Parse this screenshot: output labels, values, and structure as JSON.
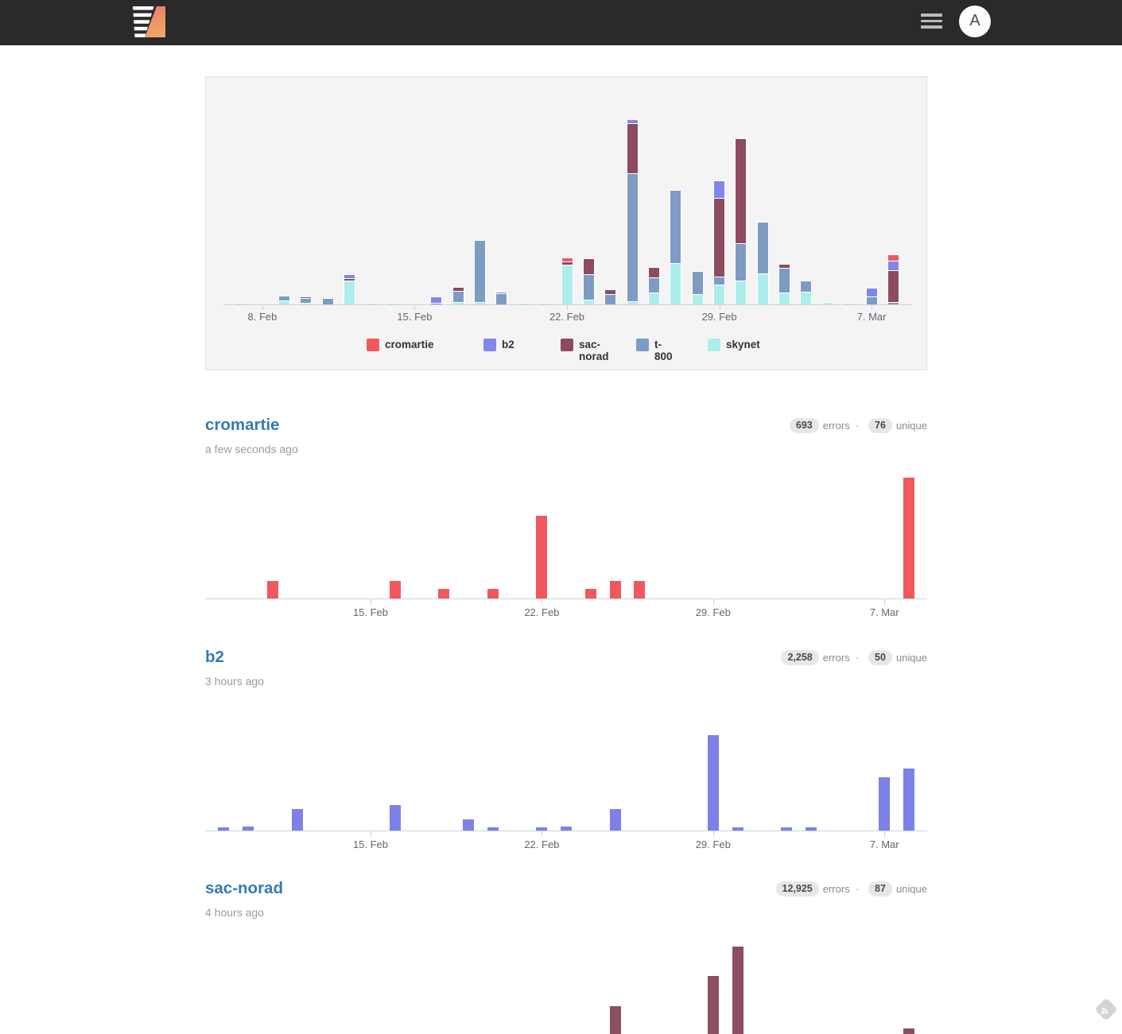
{
  "header": {
    "avatar_letter": "A"
  },
  "overview_chart": {
    "type": "bar-stacked",
    "categories": [
      "7. Feb",
      "8. Feb",
      "9. Feb",
      "10. Feb",
      "11. Feb",
      "12. Feb",
      "13. Feb",
      "14. Feb",
      "15. Feb",
      "16. Feb",
      "17. Feb",
      "18. Feb",
      "19. Feb",
      "20. Feb",
      "21. Feb",
      "22. Feb",
      "23. Feb",
      "24. Feb",
      "25. Feb",
      "26. Feb",
      "27. Feb",
      "28. Feb",
      "29. Feb",
      "1. Mar",
      "2. Mar",
      "3. Mar",
      "4. Mar",
      "5. Mar",
      "6. Mar",
      "7. Mar",
      "8. Mar"
    ],
    "series": [
      {
        "name": "skynet",
        "color": "#aeeeea",
        "values": [
          1,
          0,
          4,
          1,
          0,
          29,
          1,
          1,
          0,
          0,
          2,
          2,
          0,
          1,
          1,
          49,
          5,
          0,
          3,
          14,
          51,
          12,
          24,
          29,
          38,
          14,
          15,
          2,
          1,
          0,
          0
        ]
      },
      {
        "name": "t-800",
        "color": "#7d9bc3",
        "values": [
          0,
          0,
          5,
          5,
          7,
          0,
          0,
          0,
          0,
          1,
          13,
          77,
          13,
          0,
          0,
          0,
          31,
          12,
          160,
          18,
          91,
          28,
          9,
          46,
          64,
          30,
          13,
          0,
          0,
          9,
          2
        ]
      },
      {
        "name": "sac-norad",
        "color": "#8c4b5e",
        "values": [
          0,
          0,
          0,
          1,
          0,
          2,
          0,
          0,
          0,
          0,
          4,
          0,
          0,
          0,
          0,
          3,
          19,
          5,
          62,
          12,
          0,
          0,
          98,
          131,
          0,
          4,
          0,
          0,
          0,
          0,
          39
        ]
      },
      {
        "name": "b2",
        "color": "#8185ec",
        "values": [
          0,
          0,
          0,
          0,
          0,
          4,
          0,
          0,
          0,
          7,
          0,
          0,
          1,
          0,
          0,
          0,
          0,
          0,
          4,
          0,
          0,
          0,
          21,
          0,
          0,
          0,
          0,
          0,
          0,
          10,
          11
        ]
      },
      {
        "name": "cromartie",
        "color": "#f0585e",
        "values": [
          0,
          0,
          0,
          0,
          0,
          0,
          0,
          0,
          0,
          0,
          0,
          0,
          0,
          0,
          0,
          4,
          0,
          0,
          0,
          0,
          0,
          0,
          0,
          0,
          0,
          0,
          0,
          0,
          0,
          0,
          7
        ]
      }
    ],
    "legend": [
      {
        "label": "cromartie",
        "color": "#f0585e"
      },
      {
        "label": "b2",
        "color": "#8185ec"
      },
      {
        "label": "sac-norad",
        "color": "#8c4b5e"
      },
      {
        "label": "t-800",
        "color": "#7d9bc3"
      },
      {
        "label": "skynet",
        "color": "#aeeeea"
      }
    ],
    "ticks": [
      {
        "label": "8. Feb",
        "i": 1
      },
      {
        "label": "15. Feb",
        "i": 8
      },
      {
        "label": "22. Feb",
        "i": 15
      },
      {
        "label": "29. Feb",
        "i": 22
      },
      {
        "label": "7. Mar",
        "i": 29
      }
    ],
    "ylim": [
      0,
      286
    ]
  },
  "mini_ticks": [
    {
      "label": "15. Feb",
      "i": 8
    },
    {
      "label": "22. Feb",
      "i": 15
    },
    {
      "label": "29. Feb",
      "i": 22
    },
    {
      "label": "7. Mar",
      "i": 29
    }
  ],
  "apps": [
    {
      "name": "cromartie",
      "errors_count": "693",
      "errors_label": "errors",
      "separator": "·",
      "unique_count": "76",
      "unique_label": "unique",
      "last_seen": "a few seconds ago",
      "color": "#f0585e",
      "chart": {
        "type": "bar",
        "bars": [
          {
            "day": "11. Feb",
            "i": 4,
            "v": 22
          },
          {
            "day": "16. Feb",
            "i": 9,
            "v": 22
          },
          {
            "day": "18. Feb",
            "i": 11,
            "v": 12
          },
          {
            "day": "20. Feb",
            "i": 13,
            "v": 12
          },
          {
            "day": "22. Feb",
            "i": 15,
            "v": 104
          },
          {
            "day": "24. Feb",
            "i": 17,
            "v": 12
          },
          {
            "day": "25. Feb",
            "i": 18,
            "v": 22
          },
          {
            "day": "26. Feb",
            "i": 19,
            "v": 22
          },
          {
            "day": "8. Mar",
            "i": 30,
            "v": 152
          }
        ]
      }
    },
    {
      "name": "b2",
      "errors_count": "2,258",
      "errors_label": "errors",
      "separator": "·",
      "unique_count": "50",
      "unique_label": "unique",
      "last_seen": "3 hours ago",
      "color": "#7c81e8",
      "chart": {
        "type": "bar",
        "bars": [
          {
            "day": "9. Feb",
            "i": 2,
            "v": 4
          },
          {
            "day": "10. Feb",
            "i": 3,
            "v": 5
          },
          {
            "day": "12. Feb",
            "i": 5,
            "v": 27
          },
          {
            "day": "16. Feb",
            "i": 9,
            "v": 32
          },
          {
            "day": "19. Feb",
            "i": 12,
            "v": 14
          },
          {
            "day": "20. Feb",
            "i": 13,
            "v": 4
          },
          {
            "day": "22. Feb",
            "i": 15,
            "v": 4
          },
          {
            "day": "23. Feb",
            "i": 16,
            "v": 5
          },
          {
            "day": "25. Feb",
            "i": 18,
            "v": 27
          },
          {
            "day": "29. Feb",
            "i": 22,
            "v": 120
          },
          {
            "day": "1. Mar",
            "i": 23,
            "v": 4
          },
          {
            "day": "3. Mar",
            "i": 25,
            "v": 4
          },
          {
            "day": "4. Mar",
            "i": 26,
            "v": 4
          },
          {
            "day": "7. Mar",
            "i": 29,
            "v": 67
          },
          {
            "day": "8. Mar",
            "i": 30,
            "v": 78
          }
        ]
      }
    },
    {
      "name": "sac-norad",
      "errors_count": "12,925",
      "errors_label": "errors",
      "separator": "·",
      "unique_count": "87",
      "unique_label": "unique",
      "last_seen": "4 hours ago",
      "color": "#8d4f60",
      "chart": {
        "type": "bar",
        "bars": [
          {
            "day": "25. Feb",
            "i": 18,
            "v": 70
          },
          {
            "day": "29. Feb",
            "i": 22,
            "v": 108
          },
          {
            "day": "1. Mar",
            "i": 23,
            "v": 145
          },
          {
            "day": "8. Mar",
            "i": 30,
            "v": 42
          }
        ]
      }
    }
  ]
}
